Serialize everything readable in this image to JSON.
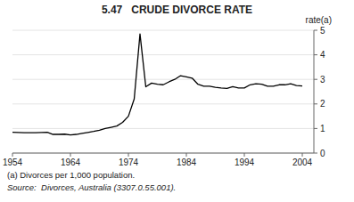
{
  "chart_data": {
    "type": "line",
    "title": "5.47   CRUDE DIVORCE RATE",
    "y_label": "rate(a)",
    "annotations": [
      "(a) Divorces per 1,000 population.",
      "Source:  Divorces, Australia (3307.0.55.001)."
    ],
    "x": [
      1954,
      1955,
      1956,
      1957,
      1958,
      1959,
      1960,
      1961,
      1962,
      1963,
      1964,
      1965,
      1966,
      1967,
      1968,
      1969,
      1970,
      1971,
      1972,
      1973,
      1974,
      1975,
      1976,
      1977,
      1978,
      1979,
      1980,
      1981,
      1982,
      1983,
      1984,
      1985,
      1986,
      1987,
      1988,
      1989,
      1990,
      1991,
      1992,
      1993,
      1994,
      1995,
      1996,
      1997,
      1998,
      1999,
      2000,
      2001,
      2002,
      2003,
      2004
    ],
    "series": [
      {
        "color": "#000000",
        "values": [
          0.85,
          0.84,
          0.83,
          0.83,
          0.83,
          0.84,
          0.85,
          0.76,
          0.76,
          0.77,
          0.74,
          0.76,
          0.8,
          0.84,
          0.88,
          0.93,
          1.0,
          1.05,
          1.1,
          1.25,
          1.5,
          2.2,
          4.85,
          2.7,
          2.85,
          2.8,
          2.78,
          2.9,
          3.0,
          3.15,
          3.1,
          3.05,
          2.8,
          2.72,
          2.72,
          2.68,
          2.65,
          2.63,
          2.7,
          2.65,
          2.65,
          2.78,
          2.82,
          2.8,
          2.72,
          2.72,
          2.78,
          2.78,
          2.82,
          2.75,
          2.73
        ]
      }
    ],
    "xlim": [
      1954,
      2006
    ],
    "ylim": [
      0,
      5
    ],
    "xticks": [
      1954,
      1964,
      1974,
      1984,
      1994,
      2004
    ],
    "yticks": [
      0,
      1,
      2,
      3,
      4,
      5
    ]
  }
}
